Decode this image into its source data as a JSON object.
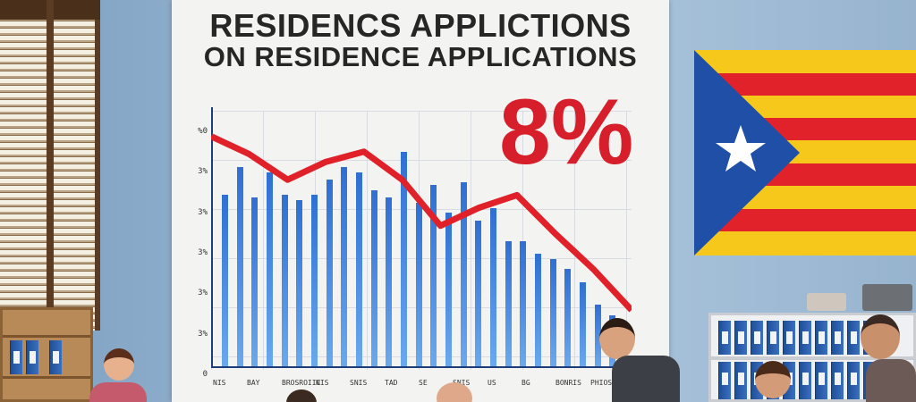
{
  "poster": {
    "title_line1": "RESIDENCS APPLICTIONS",
    "title_line2": "ON RESIDENCE APPLICATIONS",
    "percentage": "8%"
  },
  "chart_data": {
    "type": "bar",
    "title": "RESIDENCS APPLICTIONS ON RESIDENCE APPLICATIONS",
    "annotation": "8%",
    "ytick_labels": [
      "%0",
      "3%",
      "3%",
      "3%",
      "3%",
      "3%",
      "0"
    ],
    "xtick_labels": [
      "NIS",
      "BAY",
      "BROSROIIC",
      "NIS",
      "SNIS",
      "TAD",
      "SE",
      "SNIS",
      "US",
      "BG",
      "BONRIS",
      "PHIOSLL"
    ],
    "bar_heights_relative": [
      0.67,
      0.78,
      0.66,
      0.76,
      0.67,
      0.65,
      0.67,
      0.73,
      0.78,
      0.76,
      0.69,
      0.66,
      0.84,
      0.64,
      0.71,
      0.6,
      0.72,
      0.57,
      0.62,
      0.49,
      0.49,
      0.44,
      0.42,
      0.38,
      0.33,
      0.24,
      0.2
    ],
    "trend_line_relative": [
      0.9,
      0.83,
      0.73,
      0.8,
      0.84,
      0.73,
      0.55,
      0.62,
      0.67,
      0.52,
      0.38,
      0.22
    ],
    "colors": {
      "bars": "#2f6fd1",
      "trend": "#e0212a",
      "annotation": "#d61f2b"
    }
  },
  "flag": {
    "name": "Estelada",
    "stripe_yellow": "#f7c81c",
    "stripe_red": "#e2222a",
    "triangle": "#1f4fa6",
    "star": "#ffffff"
  },
  "scene": {
    "wall_color": "#98b6d2"
  }
}
